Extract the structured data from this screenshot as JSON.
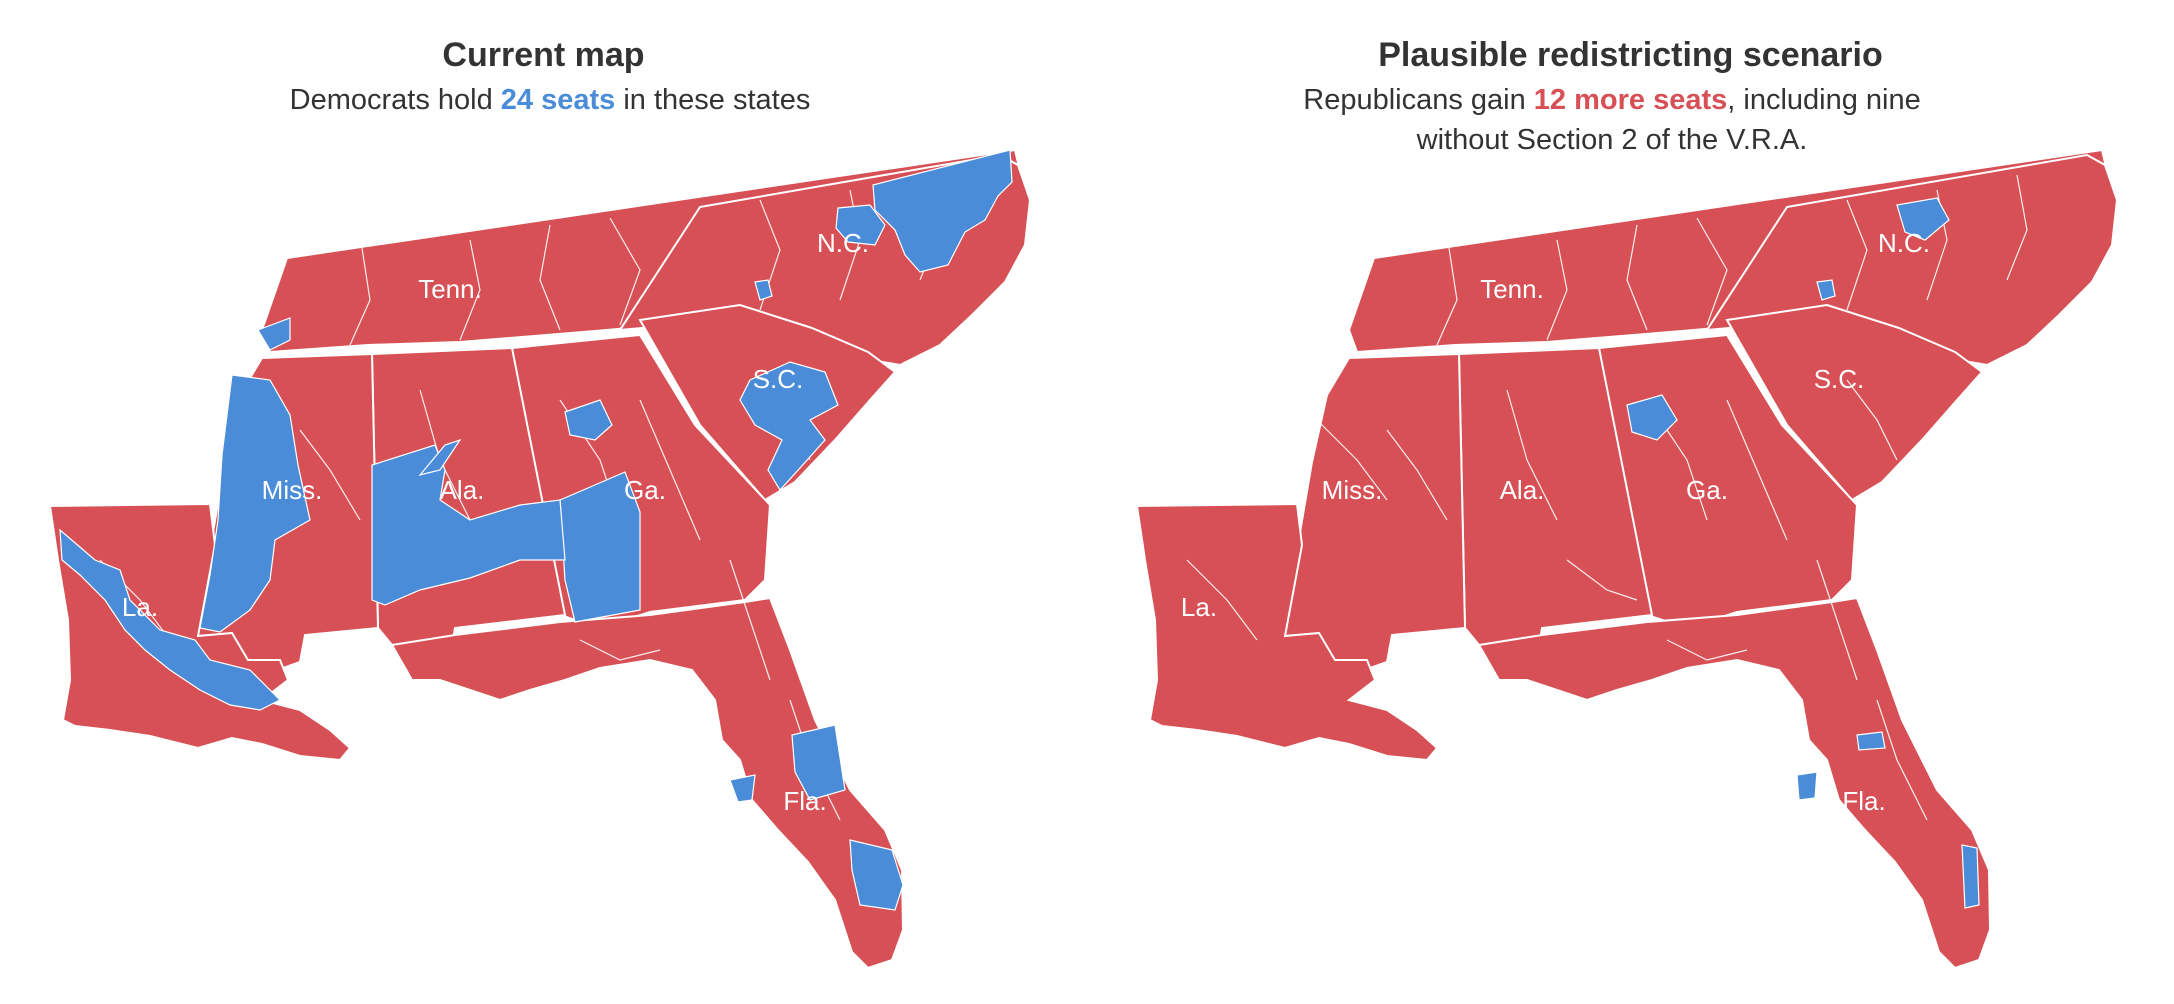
{
  "colors": {
    "republican": "#d75055",
    "democrat": "#4a8cd8",
    "border": "#ffffff",
    "text": "#333333"
  },
  "left_panel": {
    "title": "Current map",
    "subtitle_before": "Democrats hold ",
    "subtitle_highlight": "24 seats",
    "subtitle_after": " in these states",
    "state_labels": [
      "Tenn.",
      "N.C.",
      "S.C.",
      "Miss.",
      "Ala.",
      "Ga.",
      "La.",
      "Fla."
    ],
    "districts": {
      "democrat_seats": 24
    }
  },
  "right_panel": {
    "title": "Plausible redistricting scenario",
    "subtitle_before": "Republicans gain ",
    "subtitle_highlight": "12 more seats",
    "subtitle_after": ", including nine",
    "subtitle_line2": "without Section 2 of the V.R.A.",
    "state_labels": [
      "Tenn.",
      "N.C.",
      "S.C.",
      "Miss.",
      "Ala.",
      "Ga.",
      "La.",
      "Fla."
    ],
    "districts": {
      "republican_gain": 12,
      "gain_without_section_2": 9
    }
  }
}
